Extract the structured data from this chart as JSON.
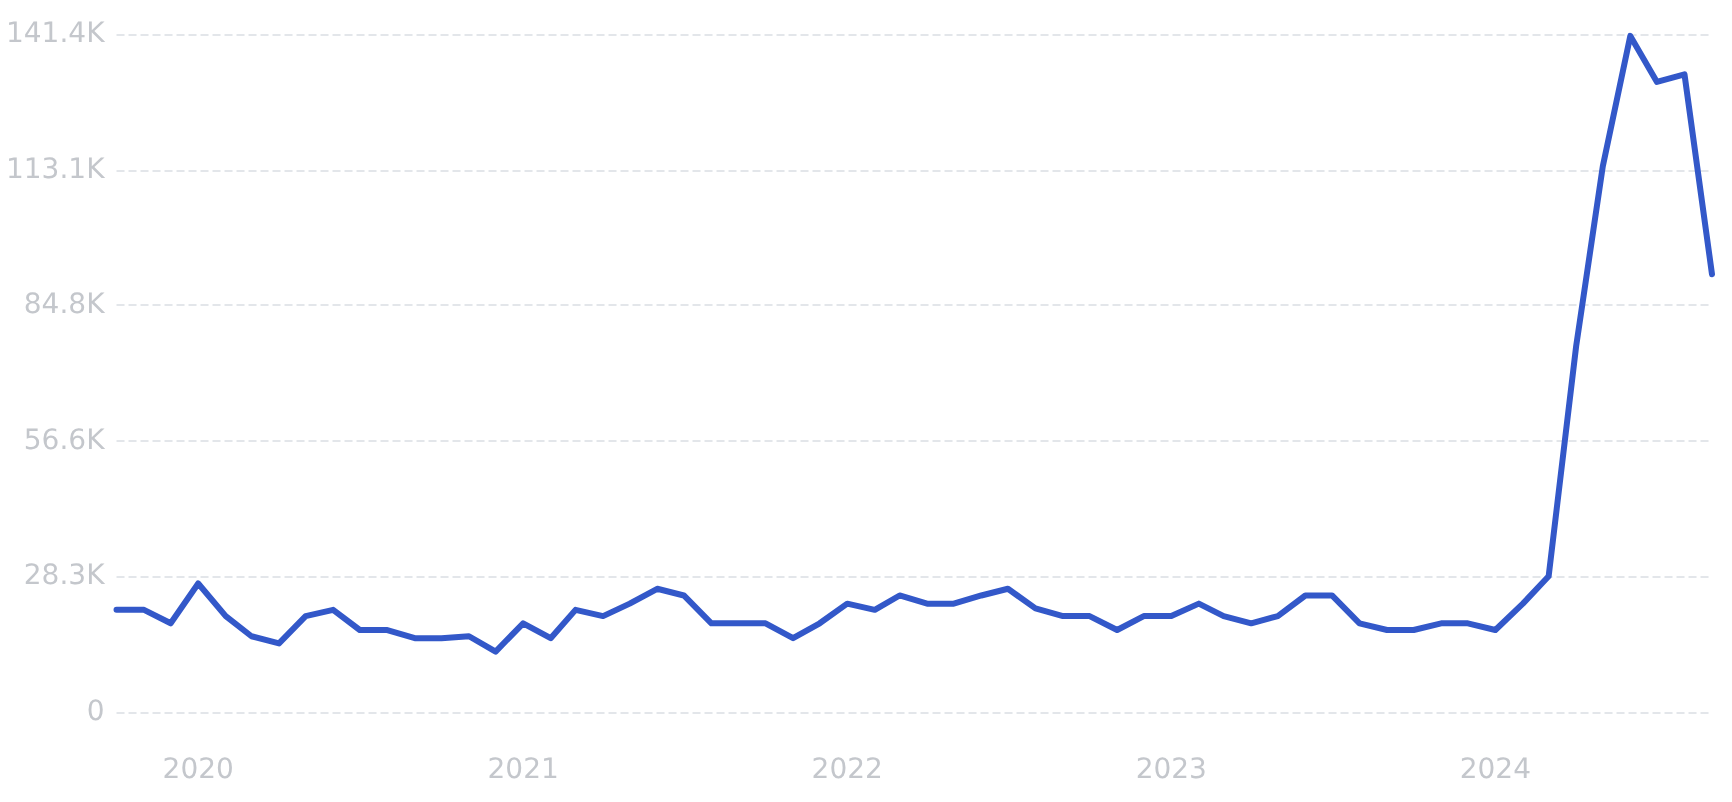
{
  "chart_data": {
    "type": "line",
    "x": [
      "2019-10",
      "2019-11",
      "2019-12",
      "2020-01",
      "2020-02",
      "2020-03",
      "2020-04",
      "2020-05",
      "2020-06",
      "2020-07",
      "2020-08",
      "2020-09",
      "2020-10",
      "2020-11",
      "2020-12",
      "2021-01",
      "2021-02",
      "2021-03",
      "2021-04",
      "2021-05",
      "2021-06",
      "2021-07",
      "2021-08",
      "2021-09",
      "2021-10",
      "2021-11",
      "2021-12",
      "2022-01",
      "2022-02",
      "2022-03",
      "2022-04",
      "2022-05",
      "2022-06",
      "2022-07",
      "2022-08",
      "2022-09",
      "2022-10",
      "2022-11",
      "2022-12",
      "2023-01",
      "2023-02",
      "2023-03",
      "2023-04",
      "2023-05",
      "2023-06",
      "2023-07",
      "2023-08",
      "2023-09",
      "2023-10",
      "2023-11",
      "2023-12",
      "2024-01",
      "2024-02",
      "2024-03",
      "2024-04",
      "2024-05",
      "2024-06",
      "2024-07",
      "2024-08",
      "2024-09"
    ],
    "series": [
      {
        "color": "#3358c9",
        "values": [
          21300,
          21300,
          18500,
          26800,
          20000,
          15800,
          14300,
          20000,
          21300,
          17100,
          17100,
          15400,
          15400,
          15800,
          12600,
          18500,
          15400,
          21300,
          20000,
          22600,
          25700,
          24300,
          18500,
          18500,
          18500,
          15400,
          18500,
          22600,
          21300,
          24300,
          22600,
          22600,
          24300,
          25700,
          21600,
          20000,
          20000,
          17100,
          20000,
          20000,
          22600,
          20000,
          18500,
          20000,
          24300,
          24300,
          18500,
          17100,
          17100,
          18500,
          18500,
          17100,
          22600,
          28300,
          76300,
          113800,
          141000,
          131400,
          133000,
          91300
        ]
      }
    ],
    "xlim": [
      "2019-10",
      "2024-09"
    ],
    "xticks": [
      "2020",
      "2021",
      "2022",
      "2023",
      "2024"
    ],
    "ylim": [
      0,
      141400
    ],
    "yticks": [
      0,
      {
        "value": 28300,
        "label": "28.3K"
      },
      {
        "value": 56600,
        "label": "56.6K"
      },
      {
        "value": 84800,
        "label": "84.8K"
      },
      {
        "value": 113100,
        "label": "113.1K"
      },
      {
        "value": 141400,
        "label": "141.4K"
      }
    ],
    "grid": "y",
    "marker": "none",
    "line_style": "solid"
  }
}
